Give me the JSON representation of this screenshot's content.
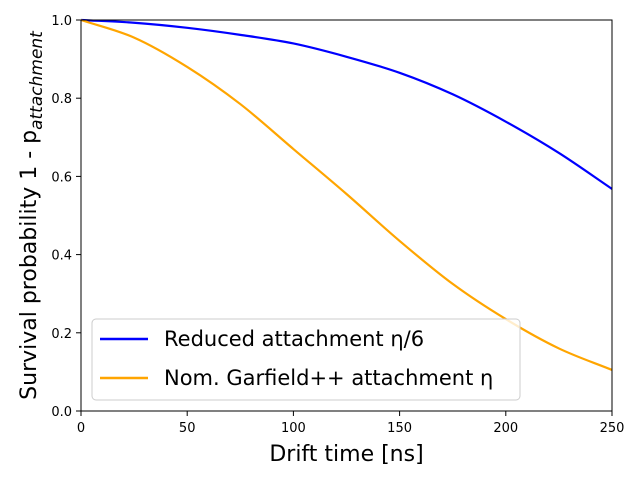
{
  "chart_data": {
    "type": "line",
    "xlabel": "Drift time [ns]",
    "ylabel": "Survival probability 1 - p",
    "ylabel_subscript": "attachment",
    "xlim": [
      0,
      250
    ],
    "ylim": [
      0,
      1.0
    ],
    "x_ticks": [
      0,
      50,
      100,
      150,
      200,
      250
    ],
    "y_ticks": [
      0.0,
      0.2,
      0.4,
      0.6,
      0.8,
      1.0
    ],
    "x_tick_labels": [
      "0",
      "50",
      "100",
      "150",
      "200",
      "250"
    ],
    "y_tick_labels": [
      "0.0",
      "0.2",
      "0.4",
      "0.6",
      "0.8",
      "1.0"
    ],
    "grid": false,
    "legend_position": "lower-left",
    "x": [
      0,
      25,
      50,
      75,
      100,
      125,
      150,
      175,
      200,
      225,
      250
    ],
    "series": [
      {
        "name": "Reduced attachment η/6",
        "color": "#0000ff",
        "values": [
          1.0,
          0.993,
          0.98,
          0.962,
          0.94,
          0.906,
          0.865,
          0.81,
          0.74,
          0.66,
          0.568
        ]
      },
      {
        "name": "Nom. Garfield++ attachment η",
        "color": "#ffa500",
        "values": [
          1.0,
          0.955,
          0.88,
          0.785,
          0.67,
          0.555,
          0.435,
          0.325,
          0.235,
          0.16,
          0.105
        ]
      }
    ]
  }
}
